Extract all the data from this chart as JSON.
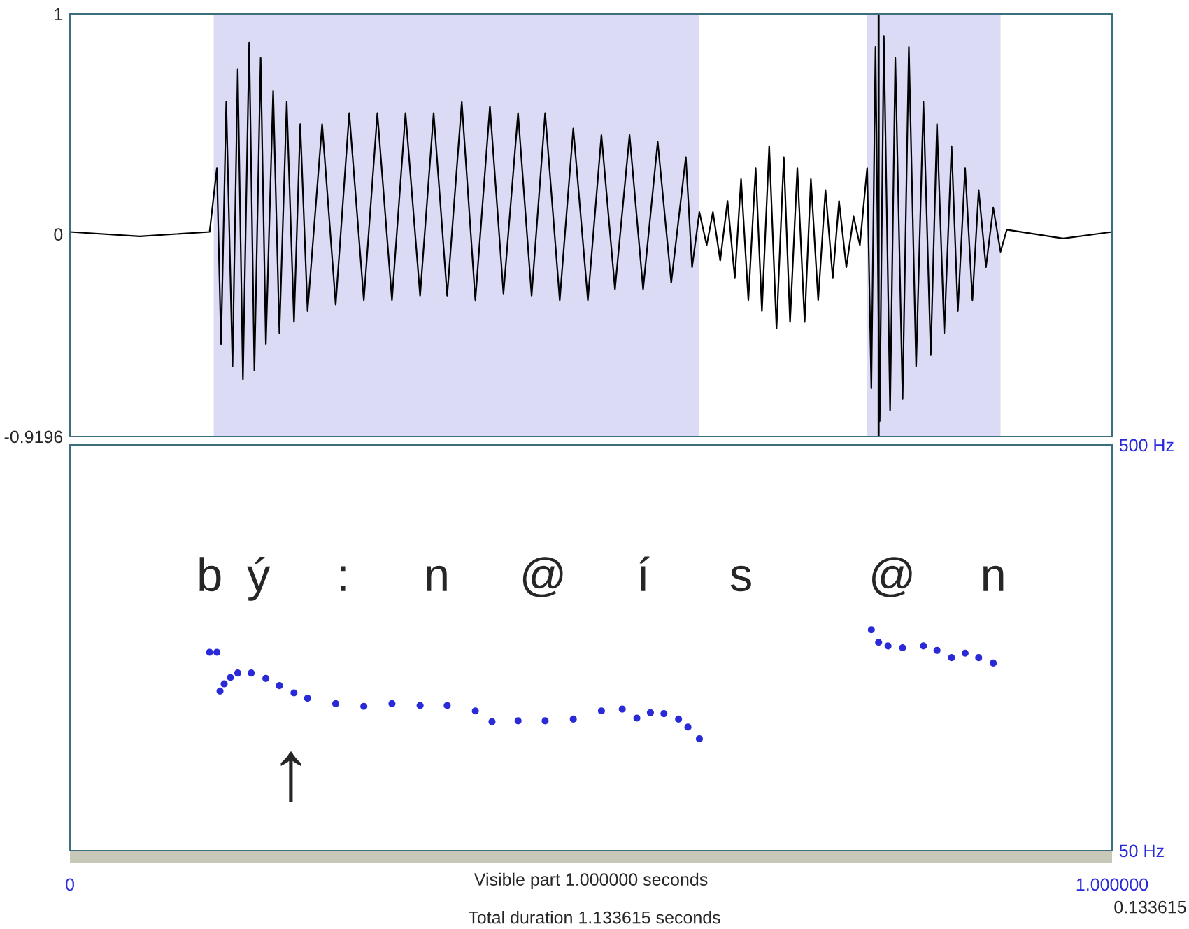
{
  "chart_data": [
    {
      "type": "line",
      "xlim": [
        0,
        1
      ],
      "ylim": [
        -0.9196,
        1
      ],
      "yticks": [
        1,
        0,
        -0.9196
      ],
      "tick_labels": "y",
      "grid": false,
      "legend": false,
      "series": [
        {
          "color": "#000000",
          "x": [
            0,
            0.067,
            0.134,
            0.141,
            0.145,
            0.15,
            0.156,
            0.161,
            0.166,
            0.172,
            0.177,
            0.183,
            0.188,
            0.195,
            0.201,
            0.208,
            0.215,
            0.221,
            0.228,
            0.242,
            0.255,
            0.268,
            0.282,
            0.295,
            0.309,
            0.322,
            0.336,
            0.349,
            0.362,
            0.376,
            0.389,
            0.403,
            0.416,
            0.43,
            0.443,
            0.456,
            0.47,
            0.483,
            0.497,
            0.51,
            0.523,
            0.537,
            0.55,
            0.564,
            0.577,
            0.591,
            0.597,
            0.604,
            0.611,
            0.617,
            0.624,
            0.631,
            0.638,
            0.644,
            0.651,
            0.658,
            0.664,
            0.671,
            0.678,
            0.685,
            0.691,
            0.698,
            0.705,
            0.711,
            0.718,
            0.725,
            0.732,
            0.738,
            0.745,
            0.752,
            0.758,
            0.765,
            0.769,
            0.773,
            0.777,
            0.781,
            0.787,
            0.792,
            0.799,
            0.805,
            0.812,
            0.819,
            0.826,
            0.832,
            0.839,
            0.846,
            0.852,
            0.859,
            0.866,
            0.872,
            0.879,
            0.886,
            0.893,
            0.899,
            0.953,
            1.0
          ],
          "values": [
            0.01,
            -0.01,
            0.01,
            0.3,
            -0.5,
            0.6,
            -0.6,
            0.75,
            -0.66,
            0.87,
            -0.62,
            0.8,
            -0.5,
            0.65,
            -0.45,
            0.6,
            -0.4,
            0.5,
            -0.35,
            0.5,
            -0.32,
            0.55,
            -0.3,
            0.55,
            -0.3,
            0.55,
            -0.28,
            0.55,
            -0.28,
            0.6,
            -0.3,
            0.58,
            -0.27,
            0.55,
            -0.28,
            0.55,
            -0.3,
            0.48,
            -0.3,
            0.45,
            -0.25,
            0.45,
            -0.25,
            0.42,
            -0.22,
            0.35,
            -0.15,
            0.1,
            -0.05,
            0.1,
            -0.12,
            0.15,
            -0.2,
            0.25,
            -0.3,
            0.3,
            -0.35,
            0.4,
            -0.43,
            0.35,
            -0.4,
            0.3,
            -0.4,
            0.25,
            -0.3,
            0.2,
            -0.2,
            0.15,
            -0.15,
            0.08,
            -0.05,
            0.3,
            -0.7,
            0.85,
            -0.85,
            0.9,
            -0.8,
            0.8,
            -0.75,
            0.85,
            -0.6,
            0.6,
            -0.55,
            0.5,
            -0.45,
            0.4,
            -0.35,
            0.3,
            -0.3,
            0.2,
            -0.15,
            0.12,
            -0.08,
            0.02,
            -0.02,
            0.01
          ]
        }
      ],
      "bands": [
        {
          "axis": "x",
          "from": 0.138,
          "to": 0.604,
          "color": "#3a3acc"
        },
        {
          "axis": "x",
          "from": 0.765,
          "to": 0.893,
          "color": "#3a3acc"
        }
      ],
      "ref_lines": [
        {
          "axis": "x",
          "value": 0.776,
          "color": "#000000"
        }
      ]
    },
    {
      "type": "scatter",
      "xlim": [
        0,
        1
      ],
      "ylim": [
        50,
        500
      ],
      "xticks": [
        {
          "value": 0,
          "label": "0"
        },
        {
          "value": 1,
          "label": "1.000000"
        }
      ],
      "yticks": [
        {
          "value": 500,
          "label": "500 Hz"
        },
        {
          "value": 50,
          "label": "50 Hz"
        }
      ],
      "xlabel": "Visible part 1.000000 seconds",
      "marker": "circle",
      "grid": false,
      "legend": false,
      "series": [
        {
          "color": "#2a2ad8",
          "x": [
            0.134,
            0.141,
            0.144,
            0.148,
            0.154,
            0.161,
            0.174,
            0.188,
            0.201,
            0.215,
            0.228,
            0.255,
            0.282,
            0.309,
            0.336,
            0.362,
            0.389,
            0.405,
            0.43,
            0.456,
            0.483,
            0.51,
            0.53,
            0.544,
            0.557,
            0.57,
            0.584,
            0.593,
            0.604,
            0.769,
            0.776,
            0.785,
            0.799,
            0.819,
            0.832,
            0.846,
            0.859,
            0.872,
            0.886
          ],
          "values": [
            270,
            270,
            227,
            235,
            242,
            247,
            247,
            241,
            233,
            225,
            219,
            213,
            210,
            213,
            211,
            211,
            205,
            193,
            194,
            194,
            196,
            205,
            207,
            197,
            203,
            202,
            196,
            187,
            174,
            295,
            281,
            277,
            275,
            277,
            272,
            264,
            269,
            264,
            258
          ]
        }
      ],
      "annotations": [
        "b",
        "ý",
        ":",
        "n",
        "@",
        "í",
        "s",
        "@",
        "n",
        "↑",
        "0.133615",
        "Total duration 1.133615 seconds"
      ]
    }
  ]
}
